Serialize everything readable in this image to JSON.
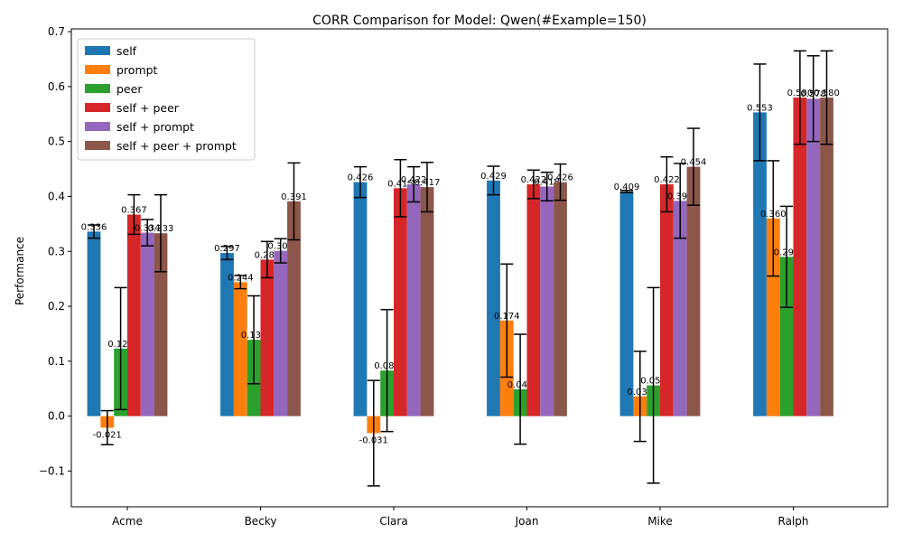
{
  "chart_data": {
    "type": "bar",
    "title": "CORR Comparison for Model: Qwen(#Example=150)",
    "xlabel": "",
    "ylabel": "Performance",
    "ylim": [
      -0.165,
      0.705
    ],
    "yticks": [
      -0.1,
      0.0,
      0.1,
      0.2,
      0.3,
      0.4,
      0.5,
      0.6,
      0.7
    ],
    "ytick_labels": [
      "−0.1",
      "0.0",
      "0.1",
      "0.2",
      "0.3",
      "0.4",
      "0.5",
      "0.6",
      "0.7"
    ],
    "grid": false,
    "legend_position": "top-left",
    "categories": [
      "Acme",
      "Becky",
      "Clara",
      "Joan",
      "Mike",
      "Ralph"
    ],
    "series": [
      {
        "name": "self",
        "color": "#1f77b4",
        "values": [
          0.336,
          0.297,
          0.426,
          0.429,
          0.409,
          0.553
        ],
        "labels": [
          "0.336",
          "0.297",
          "0.426",
          "0.429",
          "0.409",
          "0.553"
        ],
        "err": [
          0.012,
          0.012,
          0.028,
          0.026,
          0.002,
          0.088
        ]
      },
      {
        "name": "prompt",
        "color": "#ff7f0e",
        "values": [
          -0.021,
          0.244,
          -0.031,
          0.174,
          0.036,
          0.36
        ],
        "labels": [
          "-0.021",
          "0.244",
          "-0.031",
          "0.174",
          "0.036",
          "0.360"
        ],
        "err": [
          0.031,
          0.012,
          0.096,
          0.103,
          0.082,
          0.105
        ]
      },
      {
        "name": "peer",
        "color": "#2ca02c",
        "values": [
          0.123,
          0.139,
          0.083,
          0.049,
          0.056,
          0.29
        ],
        "labels": [
          "0.123",
          "0.139",
          "0.083",
          "0.049",
          "0.056",
          "0.290"
        ],
        "err": [
          0.111,
          0.08,
          0.111,
          0.1,
          0.178,
          0.092
        ]
      },
      {
        "name": "self + peer",
        "color": "#d62728",
        "values": [
          0.367,
          0.285,
          0.415,
          0.422,
          0.422,
          0.58
        ],
        "labels": [
          "0.367",
          "0.285",
          "0.415",
          "0.422",
          "0.422",
          "0.580"
        ],
        "err": [
          0.036,
          0.033,
          0.052,
          0.026,
          0.05,
          0.085
        ]
      },
      {
        "name": "self + prompt",
        "color": "#9467bd",
        "values": [
          0.334,
          0.301,
          0.422,
          0.418,
          0.392,
          0.578
        ],
        "labels": [
          "0.334",
          "0.301",
          "0.422",
          "0.418",
          "0.392",
          "0.578"
        ],
        "err": [
          0.024,
          0.022,
          0.032,
          0.026,
          0.068,
          0.078
        ]
      },
      {
        "name": "self + peer + prompt",
        "color": "#8c564b",
        "values": [
          0.333,
          0.391,
          0.417,
          0.426,
          0.454,
          0.58
        ],
        "labels": [
          "0.333",
          "0.391",
          "0.417",
          "0.426",
          "0.454",
          "0.580"
        ],
        "err": [
          0.07,
          0.07,
          0.045,
          0.033,
          0.07,
          0.085
        ]
      }
    ]
  }
}
